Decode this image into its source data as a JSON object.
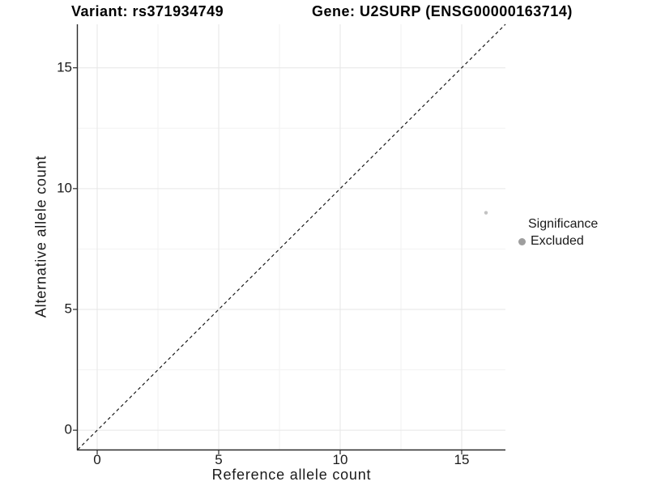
{
  "colors": {
    "background": "#ffffff",
    "grid_major": "#e6e6e6",
    "grid_minor": "#f2f2f2",
    "axis_line": "#2a2a2a",
    "tick_mark": "#2a2a2a",
    "text": "#1a1a1a",
    "point": "#c2c2c2",
    "legend_dot": "#9e9e9e",
    "identity_line": "#1a1a1a"
  },
  "chart_data": {
    "type": "scatter",
    "title_left": "Variant: rs371934749",
    "title_right": "Gene: U2SURP (ENSG00000163714)",
    "xlabel": "Reference allele count",
    "ylabel": "Alternative allele count",
    "xlim": [
      -0.8,
      16.8
    ],
    "ylim": [
      -0.8,
      16.8
    ],
    "x_ticks": [
      0,
      5,
      10,
      15
    ],
    "y_ticks": [
      0,
      5,
      10,
      15
    ],
    "grid": "major+minor",
    "legend_position": "right",
    "identity_line": {
      "style": "dashed",
      "equation": "y = x"
    },
    "points": [
      {
        "x": 16,
        "y": 9,
        "significance": "Excluded"
      }
    ],
    "legend": {
      "title": "Significance",
      "entries": [
        {
          "label": "Excluded"
        }
      ]
    }
  }
}
